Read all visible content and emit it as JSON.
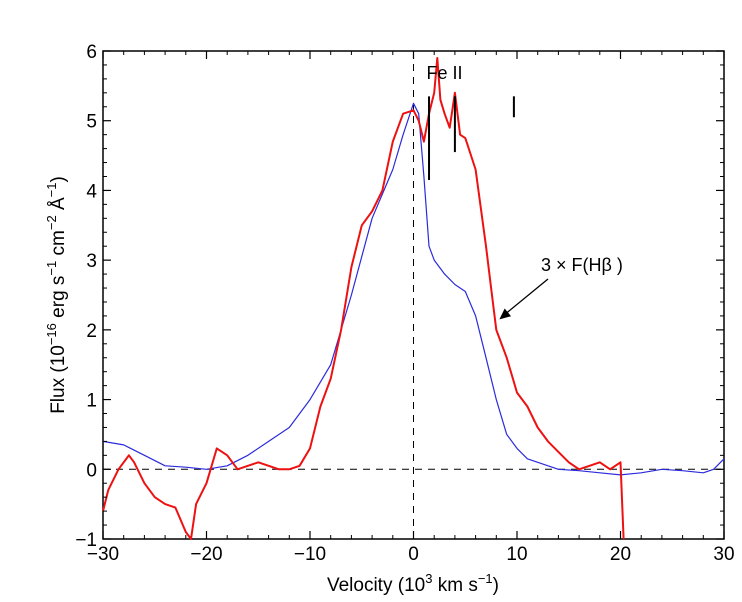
{
  "chart_data": {
    "type": "line",
    "title": "",
    "xlabel_parts": {
      "pre": "Velocity (10",
      "sup": "3",
      "post": " km s",
      "sup2": "−1",
      "end": ")"
    },
    "ylabel_parts": {
      "pre": "Flux (10",
      "sup1": "−16",
      "mid1": " erg s",
      "sup2": "−1",
      "mid2": " cm",
      "sup3": "−2",
      "mid3": " Å",
      "sup4": "−1",
      "end": ")"
    },
    "xlim": [
      -30,
      30
    ],
    "ylim": [
      -1,
      6
    ],
    "xticks": [
      -30,
      -20,
      -10,
      0,
      10,
      20,
      30
    ],
    "xtick_labels": [
      "−30",
      "−20",
      "−10",
      "0",
      "10",
      "20",
      "30"
    ],
    "yticks": [
      -1,
      0,
      1,
      2,
      3,
      4,
      5,
      6
    ],
    "ytick_labels": [
      "−1",
      "0",
      "1",
      "2",
      "3",
      "4",
      "5",
      "6"
    ],
    "reference_lines": [
      {
        "orientation": "horizontal",
        "value": 0,
        "style": "dashed"
      },
      {
        "orientation": "vertical",
        "value": 0,
        "style": "dashed"
      }
    ],
    "series": [
      {
        "name": "blue",
        "color": "#2b2bdd",
        "x": [
          -30,
          -28,
          -26,
          -24,
          -22,
          -20,
          -18,
          -16,
          -14,
          -12,
          -10,
          -8,
          -6,
          -4,
          -2,
          -1,
          0,
          0.5,
          1,
          1.5,
          2,
          3,
          4,
          5,
          6,
          7,
          8,
          9,
          10,
          11,
          12,
          14,
          16,
          18,
          20,
          22,
          24,
          26,
          28,
          29,
          30
        ],
        "values": [
          0.4,
          0.35,
          0.2,
          0.05,
          0.03,
          0.0,
          0.05,
          0.2,
          0.4,
          0.6,
          1.0,
          1.5,
          2.5,
          3.6,
          4.3,
          4.8,
          5.25,
          5.1,
          4.2,
          3.2,
          3.0,
          2.8,
          2.65,
          2.55,
          2.2,
          1.6,
          1.0,
          0.5,
          0.3,
          0.15,
          0.1,
          0.0,
          -0.02,
          -0.05,
          -0.08,
          -0.05,
          0.0,
          -0.02,
          -0.05,
          0.0,
          0.15
        ]
      },
      {
        "name": "red",
        "label": "3 × F(Hβ )",
        "color": "#ee1111",
        "x": [
          -30,
          -29.5,
          -28.5,
          -27.5,
          -27,
          -26,
          -25,
          -24,
          -23,
          -22,
          -21.5,
          -21,
          -20,
          -19,
          -18,
          -17,
          -16,
          -15,
          -14,
          -13,
          -12,
          -11,
          -10,
          -9,
          -8,
          -7,
          -6,
          -5,
          -4,
          -3,
          -2,
          -1,
          0,
          0.5,
          1,
          1.5,
          2,
          2.3,
          2.6,
          3,
          3.5,
          4,
          4.5,
          5,
          6,
          7,
          7.5,
          8,
          9,
          10,
          11,
          12,
          13,
          14,
          15,
          16,
          17,
          18,
          19,
          20,
          20.3
        ],
        "values": [
          -0.6,
          -0.3,
          0.0,
          0.2,
          0.1,
          -0.2,
          -0.4,
          -0.5,
          -0.55,
          -0.9,
          -1.0,
          -0.5,
          -0.2,
          0.3,
          0.2,
          0.0,
          0.05,
          0.1,
          0.05,
          0.0,
          0.0,
          0.05,
          0.3,
          0.9,
          1.3,
          2.0,
          2.9,
          3.5,
          3.7,
          4.0,
          4.7,
          5.1,
          5.15,
          5.0,
          4.7,
          5.1,
          5.4,
          5.9,
          5.3,
          5.1,
          4.9,
          5.4,
          4.8,
          4.75,
          4.3,
          3.2,
          2.6,
          2.0,
          1.6,
          1.1,
          0.9,
          0.6,
          0.4,
          0.25,
          0.1,
          0.0,
          0.05,
          0.1,
          0.0,
          0.1,
          -1.0
        ]
      }
    ],
    "annotations": {
      "label": "3 × F(Hβ )",
      "arrow_tip": {
        "x": 8.3,
        "y": 2.15
      },
      "lines": {
        "label": "Fe II",
        "x_values": [
          1.5,
          4.0,
          9.7
        ],
        "y_from": [
          4.15,
          4.55,
          5.05
        ],
        "y_to": [
          5.35,
          5.35,
          5.35
        ]
      }
    }
  }
}
